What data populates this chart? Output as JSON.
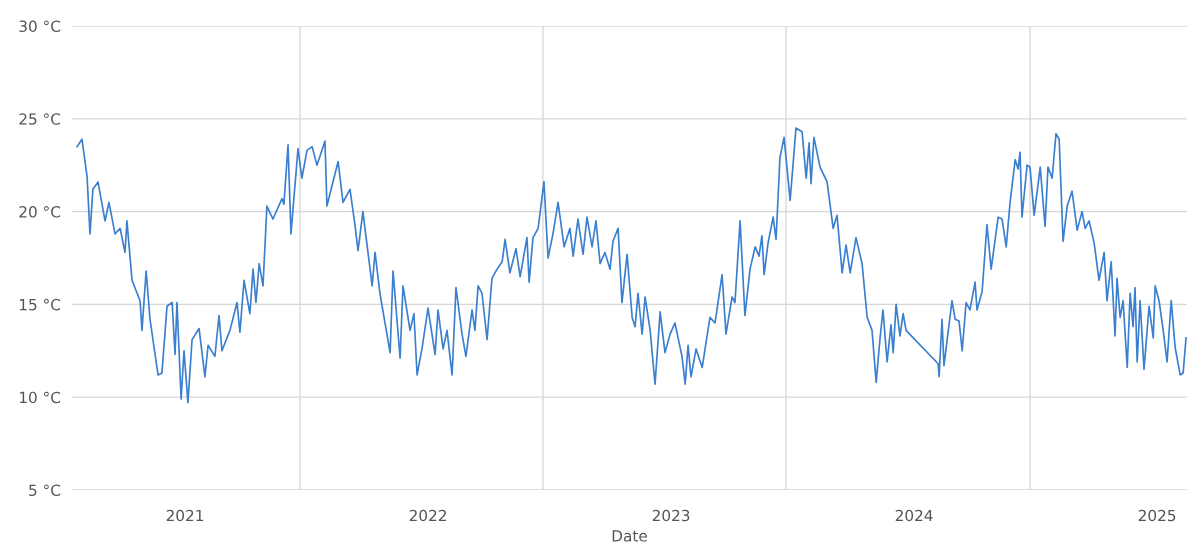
{
  "chart_data": {
    "type": "line",
    "xlabel": "Date",
    "color": "#3a7fd0",
    "grid": true,
    "legend": false,
    "xlim": [
      2020.535,
      2025.123
    ],
    "ylim": [
      5,
      30
    ],
    "xticks": [
      {
        "value": 2021,
        "label": "2021"
      },
      {
        "value": 2021.473,
        "label": null
      },
      {
        "value": 2022,
        "label": "2022"
      },
      {
        "value": 2022.473,
        "label": null
      },
      {
        "value": 2023,
        "label": "2023"
      },
      {
        "value": 2023.473,
        "label": null
      },
      {
        "value": 2024,
        "label": "2024"
      },
      {
        "value": 2024.477,
        "label": null
      },
      {
        "value": 2025,
        "label": "2025"
      }
    ],
    "yticks": [
      {
        "value": 5,
        "label": "5 °C"
      },
      {
        "value": 10,
        "label": "10 °C"
      },
      {
        "value": 15,
        "label": "15 °C"
      },
      {
        "value": 20,
        "label": "20 °C"
      },
      {
        "value": 25,
        "label": "25 °C"
      },
      {
        "value": 30,
        "label": "30 °C"
      }
    ],
    "x": [
      2020.556,
      2020.576,
      2020.597,
      2020.609,
      2020.621,
      2020.642,
      2020.671,
      2020.687,
      2020.712,
      2020.733,
      2020.753,
      2020.761,
      2020.782,
      2020.815,
      2020.823,
      2020.84,
      2020.856,
      2020.889,
      2020.905,
      2020.926,
      2020.947,
      2020.959,
      2020.967,
      2020.984,
      2020.996,
      2021.012,
      2021.029,
      2021.058,
      2021.082,
      2021.095,
      2021.123,
      2021.14,
      2021.152,
      2021.185,
      2021.214,
      2021.226,
      2021.243,
      2021.267,
      2021.28,
      2021.292,
      2021.305,
      2021.321,
      2021.337,
      2021.362,
      2021.399,
      2021.407,
      2021.424,
      2021.436,
      2021.465,
      2021.481,
      2021.502,
      2021.523,
      2021.543,
      2021.576,
      2021.584,
      2021.63,
      2021.65,
      2021.679,
      2021.7,
      2021.712,
      2021.732,
      2021.77,
      2021.782,
      2021.802,
      2021.844,
      2021.856,
      2021.885,
      2021.897,
      2021.926,
      2021.942,
      2021.955,
      2021.975,
      2022.0,
      2022.029,
      2022.041,
      2022.062,
      2022.078,
      2022.099,
      2022.115,
      2022.14,
      2022.156,
      2022.181,
      2022.193,
      2022.206,
      2022.222,
      2022.243,
      2022.263,
      2022.284,
      2022.305,
      2022.317,
      2022.337,
      2022.362,
      2022.379,
      2022.407,
      2022.416,
      2022.432,
      2022.453,
      2022.477,
      2022.494,
      2022.514,
      2022.535,
      2022.56,
      2022.584,
      2022.597,
      2022.617,
      2022.638,
      2022.654,
      2022.675,
      2022.691,
      2022.708,
      2022.728,
      2022.749,
      2022.761,
      2022.782,
      2022.798,
      2022.819,
      2022.84,
      2022.852,
      2022.864,
      2022.881,
      2022.893,
      2022.914,
      2022.934,
      2022.955,
      2022.975,
      2022.996,
      2023.016,
      2023.045,
      2023.058,
      2023.07,
      2023.082,
      2023.103,
      2023.128,
      2023.16,
      2023.181,
      2023.21,
      2023.226,
      2023.251,
      2023.263,
      2023.284,
      2023.304,
      2023.325,
      2023.346,
      2023.362,
      2023.374,
      2023.383,
      2023.399,
      2023.42,
      2023.432,
      2023.448,
      2023.465,
      2023.49,
      2023.514,
      2023.539,
      2023.556,
      2023.568,
      2023.576,
      2023.588,
      2023.613,
      2023.642,
      2023.667,
      2023.683,
      2023.704,
      2023.72,
      2023.737,
      2023.761,
      2023.786,
      2023.807,
      2023.827,
      2023.844,
      2023.86,
      2023.872,
      2023.889,
      2023.905,
      2023.914,
      2023.926,
      2023.942,
      2023.955,
      2023.967,
      2024.099,
      2024.103,
      2024.115,
      2024.123,
      2024.156,
      2024.169,
      2024.185,
      2024.198,
      2024.214,
      2024.23,
      2024.251,
      2024.259,
      2024.28,
      2024.3,
      2024.317,
      2024.346,
      2024.362,
      2024.379,
      2024.395,
      2024.416,
      2024.428,
      2024.436,
      2024.444,
      2024.465,
      2024.477,
      2024.494,
      2024.519,
      2024.539,
      2024.551,
      2024.568,
      2024.584,
      2024.597,
      2024.613,
      2024.63,
      2024.65,
      2024.671,
      2024.691,
      2024.704,
      2024.72,
      2024.741,
      2024.761,
      2024.782,
      2024.794,
      2024.811,
      2024.827,
      2024.835,
      2024.848,
      2024.86,
      2024.877,
      2024.889,
      2024.901,
      2024.909,
      2024.918,
      2024.93,
      2024.946,
      2024.967,
      2024.984,
      2024.992,
      2025.008,
      2025.025,
      2025.041,
      2025.058,
      2025.074,
      2025.095,
      2025.107,
      2025.119
    ],
    "values": [
      23.5,
      23.9,
      21.9,
      18.8,
      21.2,
      21.6,
      19.5,
      20.5,
      18.8,
      19.1,
      17.8,
      19.5,
      16.3,
      15.2,
      13.6,
      16.8,
      14.2,
      11.2,
      11.3,
      14.9,
      15.1,
      12.3,
      15.1,
      9.9,
      12.5,
      9.7,
      13.1,
      13.7,
      11.1,
      12.8,
      12.2,
      14.4,
      12.5,
      13.6,
      15.1,
      13.5,
      16.3,
      14.5,
      16.9,
      15.1,
      17.2,
      16.0,
      20.3,
      19.6,
      20.7,
      20.4,
      23.6,
      18.8,
      23.4,
      21.8,
      23.3,
      23.5,
      22.5,
      23.8,
      20.3,
      22.7,
      20.5,
      21.2,
      19.2,
      17.9,
      20.0,
      16.0,
      17.8,
      15.6,
      12.4,
      16.8,
      12.1,
      16.0,
      13.6,
      14.5,
      11.2,
      12.6,
      14.8,
      12.3,
      14.7,
      12.6,
      13.6,
      11.2,
      15.9,
      13.4,
      12.2,
      14.7,
      13.6,
      16.0,
      15.6,
      13.1,
      16.4,
      16.9,
      17.3,
      18.5,
      16.7,
      18.0,
      16.5,
      18.6,
      16.2,
      18.6,
      19.1,
      21.6,
      17.5,
      18.8,
      20.5,
      18.1,
      19.1,
      17.6,
      19.6,
      17.7,
      19.7,
      18.1,
      19.5,
      17.2,
      17.8,
      16.9,
      18.4,
      19.1,
      15.1,
      17.7,
      14.3,
      13.8,
      15.6,
      13.4,
      15.4,
      13.6,
      10.7,
      14.6,
      12.4,
      13.4,
      14.0,
      12.2,
      10.7,
      12.8,
      11.1,
      12.6,
      11.6,
      14.3,
      14.0,
      16.6,
      13.4,
      15.4,
      15.1,
      19.5,
      14.4,
      16.9,
      18.1,
      17.6,
      18.7,
      16.6,
      18.3,
      19.7,
      18.5,
      22.9,
      24.0,
      20.6,
      24.5,
      24.3,
      21.8,
      23.7,
      21.5,
      24.0,
      22.4,
      21.6,
      19.1,
      19.8,
      16.7,
      18.2,
      16.7,
      18.6,
      17.2,
      14.3,
      13.6,
      10.8,
      13.2,
      14.7,
      11.9,
      13.9,
      12.4,
      15.0,
      13.3,
      14.5,
      13.6,
      11.8,
      11.1,
      14.2,
      11.7,
      15.2,
      14.2,
      14.1,
      12.5,
      15.1,
      14.7,
      16.2,
      14.7,
      15.7,
      19.3,
      16.9,
      19.7,
      19.6,
      18.1,
      20.5,
      22.8,
      22.3,
      23.2,
      19.7,
      22.5,
      22.4,
      19.8,
      22.4,
      19.2,
      22.4,
      21.8,
      24.2,
      23.9,
      18.4,
      20.3,
      21.1,
      19.0,
      20.0,
      19.1,
      19.5,
      18.3,
      16.3,
      17.8,
      15.2,
      17.3,
      13.3,
      16.4,
      14.3,
      15.2,
      11.6,
      15.6,
      13.8,
      15.9,
      11.9,
      15.2,
      11.5,
      14.9,
      13.2,
      16.0,
      15.2,
      13.6,
      11.9,
      15.2,
      12.7,
      11.2,
      11.3,
      13.2
    ]
  }
}
